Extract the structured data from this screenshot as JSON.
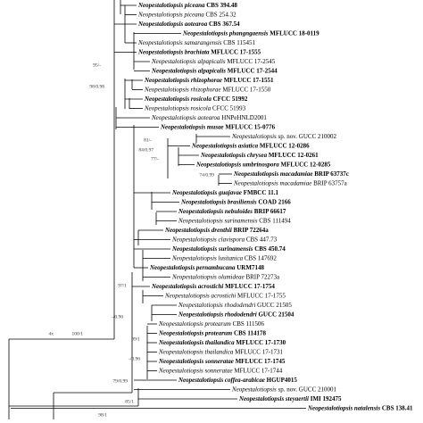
{
  "taxa": [
    {
      "name": "Neopestalotiopsis piceana",
      "strain": "CBS 394.48",
      "bold": true
    },
    {
      "name": "Neopestalotiopsis piceana",
      "strain": "CBS 254.32",
      "bold": false
    },
    {
      "name": "Neopestalotiopsis aotearoa",
      "strain": "CBS 367.54",
      "bold": true
    },
    {
      "name": "Neopestalotiopsis phangngaensis",
      "strain": "MFLUCC 18-0119",
      "bold": true
    },
    {
      "name": "Neopestalotiopsis samarangensis",
      "strain": "CBS 115451",
      "bold": false
    },
    {
      "name": "Neopestalotiopsis brachiata",
      "strain": "MFLUCC 17-1555",
      "bold": true
    },
    {
      "name": "Neopestalotiopsis alpapicalis",
      "strain": "MFLUCC 17-2545",
      "bold": false
    },
    {
      "name": "Neopestalotiopsis alpapicalis",
      "strain": "MFLUCC 17-2544",
      "bold": true
    },
    {
      "name": "Neopestalotiopsis rhizophorae",
      "strain": "MFLUCC 17-1551",
      "bold": true
    },
    {
      "name": "Neopestalotiopsis rhizophorae",
      "strain": "MFLUCC 17-1550",
      "bold": false
    },
    {
      "name": "Neopestalotiopsis rosicola",
      "strain": "CFCC 51992",
      "bold": true
    },
    {
      "name": "Neopestalotiopsis rosicola",
      "strain": "CFCC 51993",
      "bold": false
    },
    {
      "name": "Neopestalotiopsis aotearoa",
      "strain": "HNPeHNLD2001",
      "bold": false
    },
    {
      "name": "Neopestalotiopsis musae",
      "strain": "MFLUCC 15-0776",
      "bold": true
    },
    {
      "name": "Neopestalotiopsis",
      "strain": "sp. nov. GUCC 210002",
      "bold": false
    },
    {
      "name": "Neopestalotiopsis asiatica",
      "strain": "MFLUCC 12-0286",
      "bold": true
    },
    {
      "name": "Neopestalotiopsis chrysea",
      "strain": "MFLUCC 12-0261",
      "bold": true
    },
    {
      "name": "Neopestalotiopsis umbrinospora",
      "strain": "MFLUCC 12-0285",
      "bold": true
    },
    {
      "name": "Neopestalotiopsis macadamiae",
      "strain": "BRIP 63737c",
      "bold": true
    },
    {
      "name": "Neopestalotiopsis macadamiae",
      "strain": "BRIP 63757a",
      "bold": false
    },
    {
      "name": "Neopestalotiopsis guajavae",
      "strain": "FMBCC 11.1",
      "bold": true
    },
    {
      "name": "Neopestalotiopsis brasiliensis",
      "strain": "COAD 2166",
      "bold": true
    },
    {
      "name": "Neopestalotiopsis nebuloides",
      "strain": "BRIP 66617",
      "bold": true
    },
    {
      "name": "Neopestalotiopsis surinamensis",
      "strain": "CBS 111494",
      "bold": false
    },
    {
      "name": "Neopestalotiopsis drenthii",
      "strain": "BRIP 72264a",
      "bold": true
    },
    {
      "name": "Neopestalotiopsis clavispora",
      "strain": "CBS 447.73",
      "bold": false
    },
    {
      "name": "Neopestalotiopsis surinamensis",
      "strain": "CBS 450.74",
      "bold": true
    },
    {
      "name": "Neopestalotiopsis lusitanica",
      "strain": "CBS 147692",
      "bold": false
    },
    {
      "name": "Neopestalotiopsis pernambucana",
      "strain": "URM7148",
      "bold": true
    },
    {
      "name": "Neopestalotiopsis olumideae",
      "strain": "BRIP 72273a",
      "bold": false
    },
    {
      "name": "Neopestalotiopsis acrostichi",
      "strain": "MFLUCC 17-1754",
      "bold": true
    },
    {
      "name": "Neopestalotiopsis acrostichi",
      "strain": "MFLUCC 17-1755",
      "bold": false
    },
    {
      "name": "Neopestalotiopsis rhododendri",
      "strain": "GUCC 21505",
      "bold": false
    },
    {
      "name": "Neopestalotiopsis rhododendri",
      "strain": "GUCC 21504",
      "bold": true
    },
    {
      "name": "Neopestalotiopsis protearum",
      "strain": "CBS 111506",
      "bold": false
    },
    {
      "name": "Neopestalotiopsis protearum",
      "strain": "CBS 114178",
      "bold": true
    },
    {
      "name": "Neopestalotiopsis thailandica",
      "strain": "MFLUCC 17-1730",
      "bold": true
    },
    {
      "name": "Neopestalotiopsis thailandica",
      "strain": "MFLUCC 17-1731",
      "bold": false
    },
    {
      "name": "Neopestalotiopsis sonneratae",
      "strain": "MFLUCC 17-1745",
      "bold": true
    },
    {
      "name": "Neopestalotiopsis sonneratae",
      "strain": "MFLUCC 17-1744",
      "bold": false
    },
    {
      "name": "Neopestalotiopsis coffea-arabicae",
      "strain": "HGUP4015",
      "bold": true
    },
    {
      "name": "Neopestalotiopsis",
      "strain": "sp. nov. GUCC 210001",
      "bold": false
    },
    {
      "name": "Neopestalotiopsis steyaertii",
      "strain": "IMI 192475",
      "bold": true
    },
    {
      "name": "Neopestalotiopsis natalensis",
      "strain": "CBS 138.41",
      "bold": true
    }
  ],
  "supports": [
    "95/-",
    "98/0.98",
    "81/-",
    "84/0.97",
    "77/-",
    "74/0.99",
    "97/1",
    "-/0.96",
    "99/1",
    "-/0.96",
    "79/0.99",
    "4x",
    "100/1",
    "85/1",
    "98/1"
  ]
}
